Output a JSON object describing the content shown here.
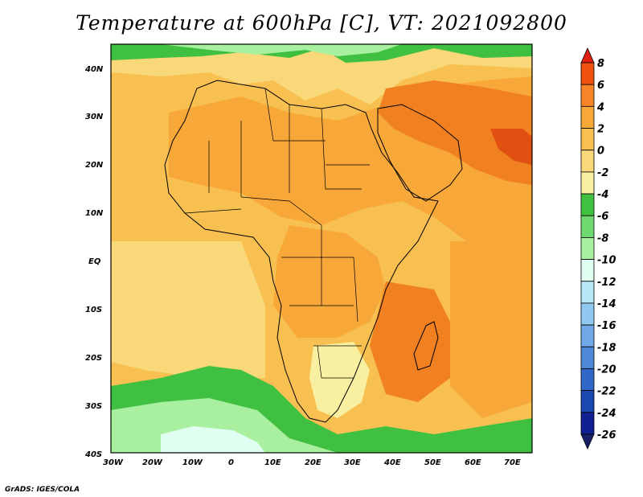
{
  "title": "Temperature at 600hPa [C], VT: 2021092800",
  "credit": "GrADS: IGES/COLA",
  "map": {
    "lat_labels": [
      "40N",
      "30N",
      "20N",
      "10N",
      "EQ",
      "10S",
      "20S",
      "30S",
      "40S"
    ],
    "lon_labels": [
      "30W",
      "20W",
      "10W",
      "0",
      "10E",
      "20E",
      "30E",
      "40E",
      "50E",
      "60E",
      "70E"
    ]
  },
  "colorbar": {
    "labels": [
      "8",
      "6",
      "4",
      "2",
      "0",
      "-2",
      "-4",
      "-6",
      "-8",
      "-10",
      "-12",
      "-14",
      "-16",
      "-18",
      "-20",
      "-22",
      "-24",
      "-26"
    ],
    "colors": [
      "#e02010",
      "#f05010",
      "#f88428",
      "#f8a838",
      "#f8c050",
      "#f8d878",
      "#f8f0a0",
      "#40c040",
      "#70d870",
      "#a8f0a0",
      "#e0fff0",
      "#b8e8f8",
      "#90c8f0",
      "#70a8e8",
      "#5088d8",
      "#3068c8",
      "#1848b0",
      "#102090",
      "#182068"
    ]
  },
  "palette": {
    "hot": "#f08020",
    "warm": "#f8a838",
    "mid": "#f8c050",
    "mild": "#f8d878",
    "cool": "#f8f0a0",
    "green": "#40c040",
    "lightgreen": "#a8f0a0",
    "paleblue": "#e0fff0"
  }
}
